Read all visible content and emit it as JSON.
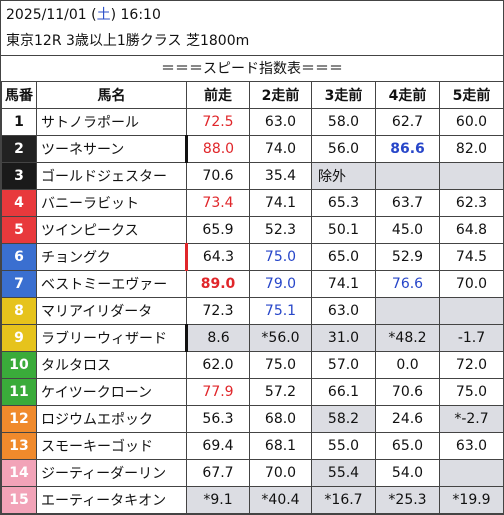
{
  "header": {
    "date": "2025/11/01 (",
    "weekday": "土",
    "time": ") 16:10",
    "race": "東京12R 3歳以上1勝クラス 芝1800m",
    "subtitle": "＝＝＝スピード指数表＝＝＝"
  },
  "columns": [
    "馬番",
    "馬名",
    "前走",
    "2走前",
    "3走前",
    "4走前",
    "5走前"
  ],
  "colors": {
    "red_text": "#e0262a",
    "blue_text": "#2746c9",
    "gray_cell": "#dcdde3",
    "frame_1": "#ffffff",
    "frame_2": "#222222",
    "frame_3": "#1a1a1a",
    "frame_4": "#e8393c",
    "frame_5": "#e8393c",
    "frame_6": "#3a6fd0",
    "frame_7": "#3a6fd0",
    "frame_8": "#e6c31c",
    "frame_9": "#e6c31c",
    "frame_10": "#3aab3a",
    "frame_11": "#3aab3a",
    "frame_12": "#f08a2c",
    "frame_13": "#f08a2c",
    "frame_14": "#f2a3b8",
    "frame_15": "#f2a3b8"
  },
  "rows": [
    {
      "num": "1",
      "name": "サトノラポール",
      "v": [
        "72.5",
        "63.0",
        "58.0",
        "62.7",
        "60.0"
      ]
    },
    {
      "num": "2",
      "name": "ツーネサーン",
      "v": [
        "88.0",
        "74.0",
        "56.0",
        "86.6",
        "82.0"
      ]
    },
    {
      "num": "3",
      "name": "ゴールドジェスター",
      "v": [
        "70.6",
        "35.4",
        "除外",
        "",
        ""
      ]
    },
    {
      "num": "4",
      "name": "バニーラビット",
      "v": [
        "73.4",
        "74.1",
        "65.3",
        "63.7",
        "62.3"
      ]
    },
    {
      "num": "5",
      "name": "ツインピークス",
      "v": [
        "65.9",
        "52.3",
        "50.1",
        "45.0",
        "64.8"
      ]
    },
    {
      "num": "6",
      "name": "チョングク",
      "v": [
        "64.3",
        "75.0",
        "65.0",
        "52.9",
        "74.5"
      ]
    },
    {
      "num": "7",
      "name": "ベストミーエヴァー",
      "v": [
        "89.0",
        "79.0",
        "74.1",
        "76.6",
        "70.0"
      ]
    },
    {
      "num": "8",
      "name": "マリアイリダータ",
      "v": [
        "72.3",
        "75.1",
        "63.0",
        "",
        ""
      ]
    },
    {
      "num": "9",
      "name": "ラブリーウィザード",
      "v": [
        "8.6",
        "*56.0",
        "31.0",
        "*48.2",
        "-1.7"
      ]
    },
    {
      "num": "10",
      "name": "タルタロス",
      "v": [
        "62.0",
        "75.0",
        "57.0",
        "0.0",
        "72.0"
      ]
    },
    {
      "num": "11",
      "name": "ケイツークローン",
      "v": [
        "77.9",
        "57.2",
        "66.1",
        "70.6",
        "75.0"
      ]
    },
    {
      "num": "12",
      "name": "ロジウムエポック",
      "v": [
        "56.3",
        "68.0",
        "58.2",
        "24.6",
        "*-2.7"
      ]
    },
    {
      "num": "13",
      "name": "スモーキーゴッド",
      "v": [
        "69.4",
        "68.1",
        "55.0",
        "65.0",
        "63.0"
      ]
    },
    {
      "num": "14",
      "name": "ジーティーダーリン",
      "v": [
        "67.7",
        "70.0",
        "55.4",
        "54.0",
        ""
      ]
    },
    {
      "num": "15",
      "name": "エーティータキオン",
      "v": [
        "*9.1",
        "*40.4",
        "*16.7",
        "*25.3",
        "*19.9"
      ]
    }
  ]
}
